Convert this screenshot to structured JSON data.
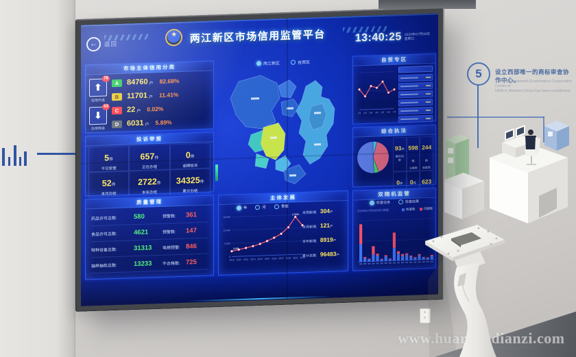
{
  "scene": {
    "watermark": "www.huarongdianzi.com",
    "milestone": {
      "number": "5",
      "title_zh": "设立西部唯一的商标审查协作中心。",
      "text_en_1": "The only Trademark Examination Cooperation Center of",
      "text_en_2": "NIPA in Western China has been established."
    }
  },
  "screen": {
    "back_label": "返回",
    "header": {
      "title": "两江新区市场信用监管平台"
    },
    "clock": {
      "time": "13:40:25",
      "date": "2020年07月08日",
      "weekday": "星期三"
    },
    "map_tabs": {
      "tab1": "两江新区",
      "tab2": "自贸区"
    },
    "credit": {
      "title": "市场主体信用分类",
      "up_label": "信用升级",
      "up_badge": "78",
      "up_icon": "⬆",
      "down_label": "信用降级",
      "down_badge": "63",
      "down_icon": "⬇",
      "rows": [
        {
          "grade": "A",
          "count": "84760",
          "unit": "户",
          "pct": "82.68%"
        },
        {
          "grade": "B",
          "count": "11701",
          "unit": "户",
          "pct": "11.41%"
        },
        {
          "grade": "C",
          "count": "22",
          "unit": "户",
          "pct": "0.02%"
        },
        {
          "grade": "D",
          "count": "6031",
          "unit": "户",
          "pct": "5.89%"
        }
      ]
    },
    "complaints": {
      "title": "投诉举报",
      "items": [
        {
          "value": "5",
          "unit": "件",
          "label": "今日受理"
        },
        {
          "value": "657",
          "unit": "件",
          "label": "正在办理"
        },
        {
          "value": "0",
          "unit": "件",
          "label": "逾期投诉"
        },
        {
          "value": "52",
          "unit": "件",
          "label": "本月办结"
        },
        {
          "value": "2722",
          "unit": "件",
          "label": "本年办结"
        },
        {
          "value": "34325",
          "unit": "件",
          "label": "累计办结"
        }
      ]
    },
    "quality": {
      "title": "质量管理",
      "rows": [
        {
          "label": "药品许可总数:",
          "value": "580",
          "warn_label": "预警数:",
          "warn_value": "361"
        },
        {
          "label": "食品许可总数:",
          "value": "4621",
          "warn_label": "预警数:",
          "warn_value": "147"
        },
        {
          "label": "特种设备总数:",
          "value": "31313",
          "warn_label": "电梯预警:",
          "warn_value": "846"
        },
        {
          "label": "抽样抽检总数:",
          "value": "13233",
          "warn_label": "不合格数:",
          "warn_value": "725"
        }
      ]
    },
    "development": {
      "title": "主体发展",
      "legend": [
        "年",
        "月",
        "季度"
      ],
      "stats": [
        {
          "label": "本周新增:",
          "value": "304",
          "unit": "户"
        },
        {
          "label": "本月新增:",
          "value": "121",
          "unit": "户"
        },
        {
          "label": "本年新增:",
          "value": "8919",
          "unit": "户"
        },
        {
          "label": "累计总数:",
          "value": "96483",
          "unit": "户"
        }
      ]
    },
    "ftz": {
      "title": "自贸专区"
    },
    "enforcement": {
      "title": "综合执法",
      "stats": [
        {
          "value": "93",
          "unit": "件",
          "label": "案件线索"
        },
        {
          "value": "598",
          "unit": "件",
          "label": "立案数"
        },
        {
          "value": "244",
          "unit": "件",
          "label": "结案数"
        },
        {
          "value": "0",
          "unit": "件",
          "label": "移送公安"
        },
        {
          "value": "0",
          "unit": "件",
          "label": "移送司法"
        },
        {
          "value": "623",
          "unit": "件",
          "label": "罚没金额"
        }
      ]
    },
    "random_check": {
      "title": "双随机监管",
      "tabs": [
        "检查任务",
        "检查结果"
      ],
      "legend": [
        "检查数",
        "问题数"
      ],
      "caption": "2020年07月08日统计数据"
    }
  },
  "colors": {
    "grade_a": "#17c24b",
    "grade_b": "#e6c41c",
    "grade_c": "#ff2e3e",
    "grade_d": "#5c6575",
    "accent_yellow": "#ffe75e",
    "accent_green": "#4df07a",
    "accent_red": "#ff5d5d",
    "accent_orange": "#ff8b45",
    "panel_border": "#2a54e8",
    "screen_blue": "#0e2eb6"
  },
  "chart_data": [
    {
      "id": "development_line",
      "type": "line",
      "title": "主体发展",
      "x": [
        "2010",
        "2011",
        "2012",
        "2013",
        "2014",
        "2015",
        "2016",
        "2017",
        "2018",
        "2019",
        "2020"
      ],
      "values": [
        2408,
        3050,
        3700,
        4400,
        5300,
        6500,
        7900,
        9600,
        12400,
        17008,
        13100
      ],
      "ylim": [
        0,
        18000
      ],
      "yticks": [
        0,
        6000,
        12000,
        18000
      ],
      "first_label": "2408",
      "peak_label": "17008",
      "line_color": "#ff6272",
      "legend": [
        "年",
        "月",
        "季度"
      ],
      "legend_position": "top"
    },
    {
      "id": "ftz_line",
      "type": "line",
      "title": "自贸专区趋势",
      "x": [
        "1月",
        "2月",
        "3月",
        "4月",
        "5月",
        "6月",
        "7月"
      ],
      "values": [
        55,
        36,
        63,
        58,
        74,
        44,
        52
      ],
      "ylim": [
        0,
        100
      ],
      "yticks": [
        0,
        50,
        100
      ],
      "line_color": "#ff6272"
    },
    {
      "id": "enforcement_pie",
      "type": "pie",
      "title": "综合执法占比",
      "slices": [
        {
          "label": "slice-cyan",
          "value": 4,
          "color": "#45c8e8"
        },
        {
          "label": "slice-pink",
          "value": 40,
          "color": "#e06a84"
        },
        {
          "label": "slice-green",
          "value": 5,
          "color": "#45d06e"
        },
        {
          "label": "slice-blue",
          "value": 51,
          "color": "#5d7fe8"
        }
      ]
    },
    {
      "id": "random_check_bars",
      "type": "bar",
      "stacked": true,
      "title": "双随机监管统计",
      "categories": [
        "1",
        "2",
        "3",
        "4",
        "5",
        "6",
        "7",
        "8",
        "9",
        "10",
        "11",
        "12",
        "13",
        "14",
        "15",
        "16",
        "17",
        "18"
      ],
      "series": [
        {
          "name": "检查数",
          "color": "#3f7bff",
          "values": [
            30,
            6,
            4,
            12,
            10,
            3,
            8,
            3,
            22,
            12,
            8,
            10,
            6,
            4,
            8,
            4,
            3,
            6
          ]
        },
        {
          "name": "问题数",
          "color": "#ff5566",
          "values": [
            34,
            2,
            1,
            14,
            3,
            1,
            2,
            1,
            26,
            4,
            3,
            2,
            2,
            1,
            2,
            1,
            1,
            2
          ]
        }
      ],
      "ylim": [
        0,
        70
      ]
    }
  ]
}
